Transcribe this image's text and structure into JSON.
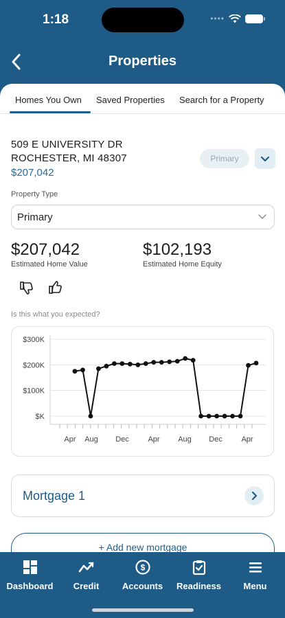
{
  "status_bar": {
    "time": "1:18"
  },
  "header": {
    "title": "Properties",
    "back_icon": "chevron-left-icon"
  },
  "tabs": [
    {
      "label": "Homes You Own",
      "active": true
    },
    {
      "label": "Saved Properties",
      "active": false
    },
    {
      "label": "Search for a Property",
      "active": false
    }
  ],
  "property": {
    "address_line1": "509 E UNIVERSITY DR",
    "address_line2": "ROCHESTER, MI 48307",
    "price": "$207,042",
    "badge": "Primary"
  },
  "property_type": {
    "label": "Property Type",
    "value": "Primary"
  },
  "stats": {
    "home_value": "$207,042",
    "home_value_label": "Estimated Home Value",
    "home_equity": "$102,193",
    "home_equity_label": "Estimated Home Equity"
  },
  "feedback": {
    "question": "Is this what you expected?"
  },
  "chart_data": {
    "type": "line",
    "yticks": [
      "$300K",
      "$200K",
      "$100K",
      "$K"
    ],
    "xticks": [
      "Apr",
      "Aug",
      "Dec",
      "Apr",
      "Aug",
      "Dec",
      "Apr"
    ],
    "ylim": [
      0,
      300000
    ],
    "series": [
      {
        "values": [
          175000,
          180000,
          0,
          185000,
          195000,
          205000,
          205000,
          203000,
          200000,
          205000,
          210000,
          210000,
          212000,
          214000,
          225000,
          218000,
          0,
          0,
          0,
          0,
          0,
          0,
          198000,
          207000
        ]
      }
    ],
    "colors": {
      "line": "#111111",
      "grid": "#e3e3e3"
    }
  },
  "mortgage": {
    "title": "Mortgage 1"
  },
  "add_mortgage": {
    "label": "+   Add new mortgage"
  },
  "nav": [
    {
      "label": "Dashboard",
      "icon": "dashboard-icon"
    },
    {
      "label": "Credit",
      "icon": "trend-icon"
    },
    {
      "label": "Accounts",
      "icon": "accounts-icon"
    },
    {
      "label": "Readiness",
      "icon": "clipboard-icon"
    },
    {
      "label": "Menu",
      "icon": "menu-icon"
    }
  ],
  "colors": {
    "brand": "#1e5b86",
    "accent_bg": "#e3edf4"
  }
}
